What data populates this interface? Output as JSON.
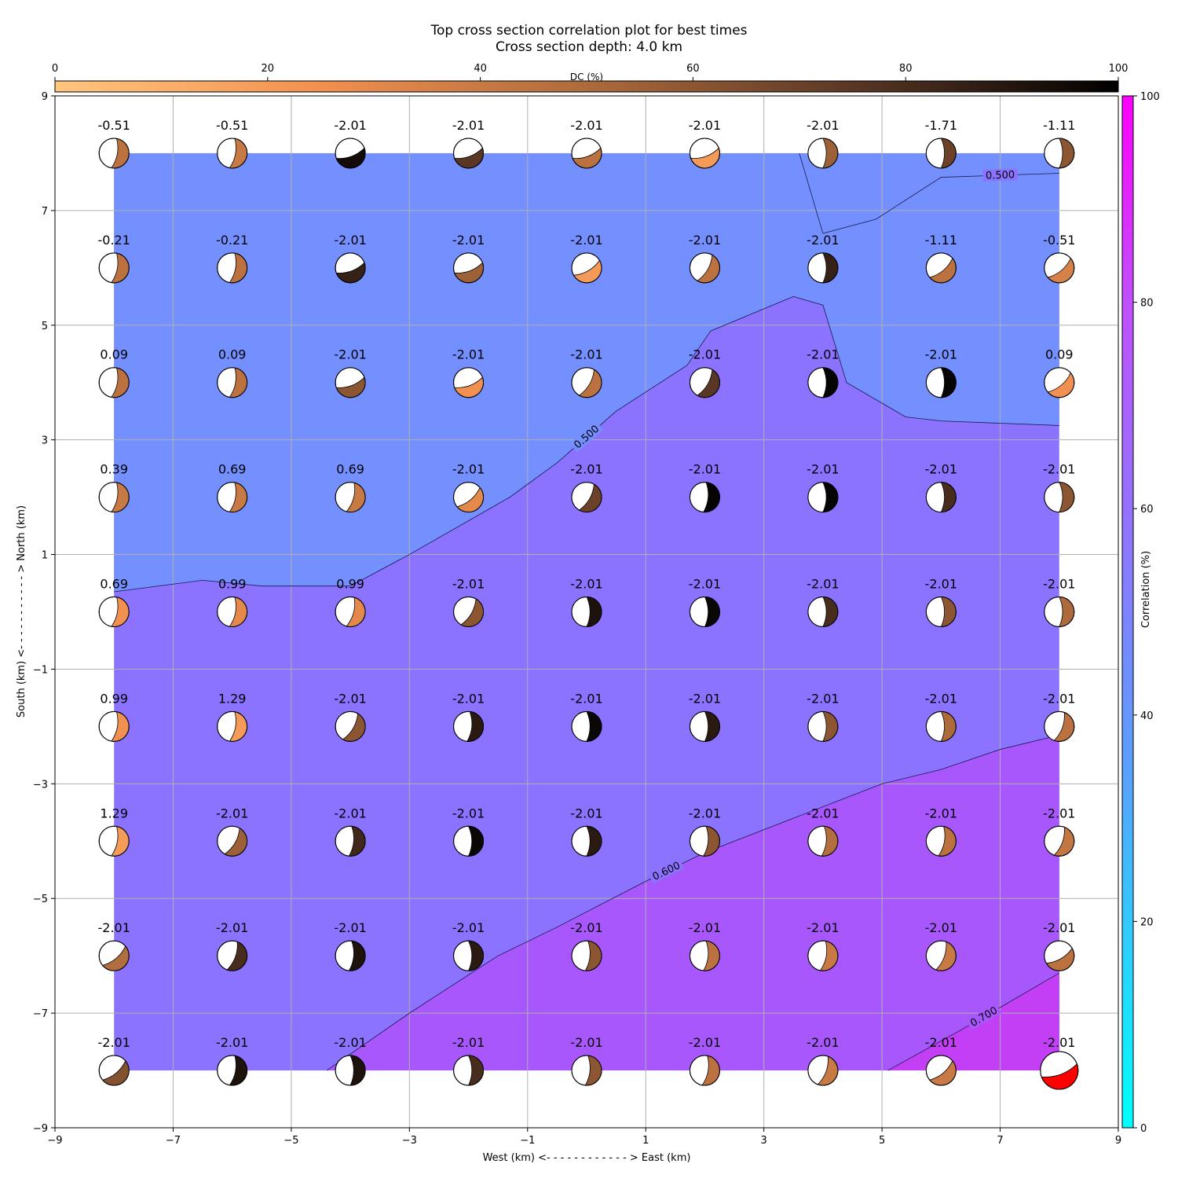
{
  "title_line1": "Top cross section correlation plot for best times",
  "title_line2": "Cross section depth: 4.0 km",
  "colors": {
    "field_low": "#7490ff",
    "field_mid": "#8b72ff",
    "field_high": "#a757fb",
    "field_top": "#c23ff5",
    "best_solution": "#ff0000"
  },
  "chart_data": {
    "type": "heatmap",
    "xlabel": "West (km) <- - - - - - - - - - - - > East (km)",
    "ylabel": "South (km) <- - - - - - - - - - - > North (km)",
    "xlim": [
      -9,
      9
    ],
    "ylim": [
      -9,
      9
    ],
    "x_ticks": [
      -9,
      -7,
      -5,
      -3,
      -1,
      1,
      3,
      5,
      7,
      9
    ],
    "y_ticks": [
      -9,
      -7,
      -5,
      -3,
      -1,
      1,
      3,
      5,
      7,
      9
    ],
    "x_tick_labels": [
      "−9",
      "−7",
      "−5",
      "−3",
      "−1",
      "1",
      "3",
      "5",
      "7",
      "9"
    ],
    "y_tick_labels": [
      "−9",
      "−7",
      "−5",
      "−3",
      "−1",
      "1",
      "3",
      "5",
      "7",
      "9"
    ],
    "grid": true,
    "grid_x": [
      -8,
      -6,
      -4,
      -2,
      0,
      2,
      4,
      6,
      8
    ],
    "grid_y": [
      8,
      6,
      4,
      2,
      0,
      -2,
      -4,
      -6,
      -8
    ],
    "colorbar_dc": {
      "label": "DC (%)",
      "ticks": [
        "0",
        "20",
        "40",
        "60",
        "80",
        "100"
      ],
      "range": [
        0,
        100
      ],
      "position": "top"
    },
    "colorbar_corr": {
      "label": "Correlation (%)",
      "ticks": [
        "0",
        "20",
        "40",
        "60",
        "80",
        "100"
      ],
      "range": [
        0,
        100
      ],
      "position": "right"
    },
    "contour_labels": [
      "0.500",
      "0.500",
      "0.600",
      "0.700"
    ],
    "contours": [
      {
        "label": "0.500",
        "level": 0.5,
        "points": [
          [
            3.6,
            8
          ],
          [
            4,
            6.6
          ],
          [
            4.9,
            6.85
          ],
          [
            6,
            7.58
          ],
          [
            8,
            7.65
          ]
        ]
      },
      {
        "label": "0.500",
        "level": 0.5,
        "points": [
          [
            -8,
            0.35
          ],
          [
            -6.5,
            0.55
          ],
          [
            -5.5,
            0.45
          ],
          [
            -4,
            0.45
          ],
          [
            -3,
            1
          ],
          [
            -1.3,
            2
          ],
          [
            -0.5,
            2.6
          ],
          [
            0.5,
            3.5
          ],
          [
            1.7,
            4.3
          ],
          [
            2.1,
            4.9
          ],
          [
            3.5,
            5.5
          ],
          [
            4,
            5.35
          ],
          [
            4.4,
            4
          ],
          [
            5.4,
            3.4
          ],
          [
            6,
            3.33
          ],
          [
            8,
            3.25
          ]
        ]
      },
      {
        "label": "0.600",
        "level": 0.6,
        "points": [
          [
            -4.4,
            -8
          ],
          [
            -3,
            -7
          ],
          [
            -1.5,
            -6
          ],
          [
            -0.5,
            -5.5
          ],
          [
            1,
            -4.7
          ],
          [
            2,
            -4.2
          ],
          [
            3.5,
            -3.6
          ],
          [
            5,
            -3
          ],
          [
            6,
            -2.75
          ],
          [
            7,
            -2.4
          ],
          [
            8,
            -2.15
          ]
        ]
      },
      {
        "label": "0.700",
        "level": 0.7,
        "points": [
          [
            5.1,
            -8
          ],
          [
            6.5,
            -7.2
          ],
          [
            8,
            -6.3
          ]
        ]
      }
    ],
    "bands": [
      {
        "from": 0.0,
        "to": 0.5,
        "color": "#7490ff"
      },
      {
        "from": 0.5,
        "to": 0.6,
        "color": "#8b72ff"
      },
      {
        "from": 0.6,
        "to": 0.7,
        "color": "#a757fb"
      },
      {
        "from": 0.7,
        "to": 1.0,
        "color": "#c23ff5"
      }
    ],
    "labels": [
      [
        "-0.51",
        "-0.51",
        "-2.01",
        "-2.01",
        "-2.01",
        "-2.01",
        "-2.01",
        "-1.71",
        "-1.11"
      ],
      [
        "-0.21",
        "-0.21",
        "-2.01",
        "-2.01",
        "-2.01",
        "-2.01",
        "-2.01",
        "-1.11",
        "-0.51"
      ],
      [
        "0.09",
        "0.09",
        "-2.01",
        "-2.01",
        "-2.01",
        "-2.01",
        "-2.01",
        "-2.01",
        "0.09"
      ],
      [
        "0.39",
        "0.69",
        "0.69",
        "-2.01",
        "-2.01",
        "-2.01",
        "-2.01",
        "-2.01",
        "-2.01"
      ],
      [
        "0.69",
        "0.99",
        "0.99",
        "-2.01",
        "-2.01",
        "-2.01",
        "-2.01",
        "-2.01",
        "-2.01"
      ],
      [
        "0.99",
        "1.29",
        "-2.01",
        "-2.01",
        "-2.01",
        "-2.01",
        "-2.01",
        "-2.01",
        "-2.01"
      ],
      [
        "1.29",
        "-2.01",
        "-2.01",
        "-2.01",
        "-2.01",
        "-2.01",
        "-2.01",
        "-2.01",
        "-2.01"
      ],
      [
        "-2.01",
        "-2.01",
        "-2.01",
        "-2.01",
        "-2.01",
        "-2.01",
        "-2.01",
        "-2.01",
        "-2.01"
      ],
      [
        "-2.01",
        "-2.01",
        "-2.01",
        "-2.01",
        "-2.01",
        "-2.01",
        "-2.01",
        "-2.01",
        "-2.01"
      ]
    ],
    "dc_percent": [
      [
        45,
        40,
        95,
        75,
        45,
        20,
        55,
        70,
        60
      ],
      [
        45,
        45,
        85,
        55,
        20,
        45,
        85,
        45,
        35
      ],
      [
        45,
        45,
        60,
        25,
        45,
        75,
        98,
        98,
        25
      ],
      [
        40,
        40,
        40,
        30,
        70,
        98,
        98,
        80,
        60
      ],
      [
        25,
        30,
        30,
        60,
        92,
        97,
        80,
        60,
        50
      ],
      [
        25,
        20,
        60,
        88,
        97,
        88,
        60,
        50,
        45
      ],
      [
        20,
        55,
        82,
        97,
        88,
        60,
        48,
        45,
        42
      ],
      [
        48,
        80,
        92,
        88,
        60,
        45,
        40,
        40,
        45
      ],
      [
        62,
        92,
        92,
        80,
        60,
        45,
        40,
        40,
        0
      ]
    ],
    "focal": [
      [
        80,
        80,
        20,
        20,
        20,
        20,
        90,
        90,
        90
      ],
      [
        80,
        80,
        20,
        20,
        30,
        60,
        90,
        40,
        40
      ],
      [
        80,
        80,
        20,
        20,
        60,
        60,
        90,
        90,
        40
      ],
      [
        80,
        80,
        75,
        40,
        60,
        85,
        90,
        90,
        90
      ],
      [
        80,
        80,
        75,
        60,
        90,
        90,
        90,
        90,
        90
      ],
      [
        80,
        80,
        60,
        85,
        90,
        90,
        90,
        90,
        70
      ],
      [
        80,
        60,
        85,
        90,
        90,
        85,
        85,
        80,
        70
      ],
      [
        40,
        70,
        85,
        90,
        85,
        85,
        80,
        70,
        30
      ],
      [
        40,
        80,
        90,
        90,
        85,
        80,
        70,
        40,
        20
      ]
    ],
    "best_solution": {
      "x": 8,
      "y": -8
    }
  }
}
